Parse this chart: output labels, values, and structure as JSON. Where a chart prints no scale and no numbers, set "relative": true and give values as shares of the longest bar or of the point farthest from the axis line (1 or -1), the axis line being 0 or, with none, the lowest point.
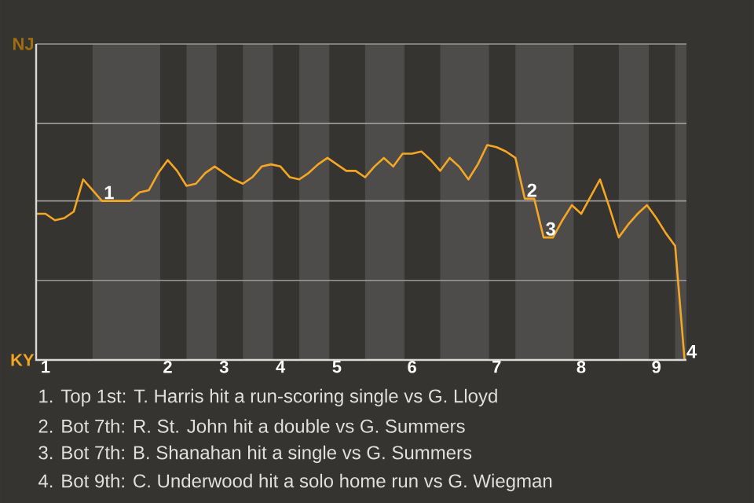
{
  "chart_data": {
    "type": "line",
    "color": "#f5a623",
    "relative": true,
    "categories": [
      null,
      "1",
      null,
      null,
      null,
      null,
      null,
      null,
      null,
      null,
      null,
      null,
      null,
      null,
      "2",
      null,
      null,
      null,
      null,
      null,
      "3",
      null,
      null,
      null,
      null,
      null,
      "4",
      null,
      null,
      null,
      null,
      null,
      "5",
      null,
      null,
      null,
      null,
      null,
      null,
      null,
      "6",
      null,
      null,
      null,
      null,
      null,
      null,
      null,
      null,
      "7",
      null,
      null,
      null,
      null,
      null,
      null,
      null,
      null,
      "8",
      null,
      null,
      null,
      null,
      null,
      null,
      null,
      "9",
      null,
      null,
      null
    ],
    "values": [
      0.68,
      0.68,
      0.65,
      0.66,
      0.69,
      0.84,
      0.79,
      0.74,
      0.74,
      0.74,
      0.74,
      0.78,
      0.79,
      0.87,
      0.93,
      0.88,
      0.81,
      0.82,
      0.87,
      0.9,
      0.87,
      0.84,
      0.82,
      0.85,
      0.9,
      0.91,
      0.9,
      0.85,
      0.84,
      0.87,
      0.91,
      0.94,
      0.91,
      0.88,
      0.88,
      0.85,
      0.9,
      0.94,
      0.9,
      0.96,
      0.96,
      0.97,
      0.93,
      0.88,
      0.94,
      0.9,
      0.84,
      0.91,
      1.0,
      0.99,
      0.97,
      0.94,
      0.75,
      0.75,
      0.57,
      0.57,
      0.65,
      0.72,
      0.68,
      0.76,
      0.84,
      0.71,
      0.57,
      0.63,
      0.68,
      0.72,
      0.66,
      0.59,
      0.53,
      0.0
    ],
    "ref_lines": [
      {
        "axis": "y",
        "value": 0.37,
        "color": "#999999"
      },
      {
        "axis": "y",
        "value": 0.74,
        "color": "#999999"
      },
      {
        "axis": "y",
        "value": 1.1,
        "color": "#999999"
      },
      {
        "axis": "y",
        "value": 1.47,
        "color": "#999999"
      }
    ],
    "annotations": [
      {
        "text": "1",
        "y": 0.74
      },
      {
        "text": "2",
        "y": 0.75
      },
      {
        "text": "3",
        "y": 0.57
      },
      {
        "text": "4",
        "y": 0.0
      },
      "NJ",
      "KY",
      "1. Top 1st: T. Harris hit a run-scoring single vs G. Lloyd",
      "2. Bot 7th: R. St. John hit a double vs G. Summers",
      "3. Bot 7th: B. Shanahan hit a single vs G. Summers",
      "4. Bot 9th: C. Underwood hit a solo home run vs G. Wiegman"
    ]
  }
}
